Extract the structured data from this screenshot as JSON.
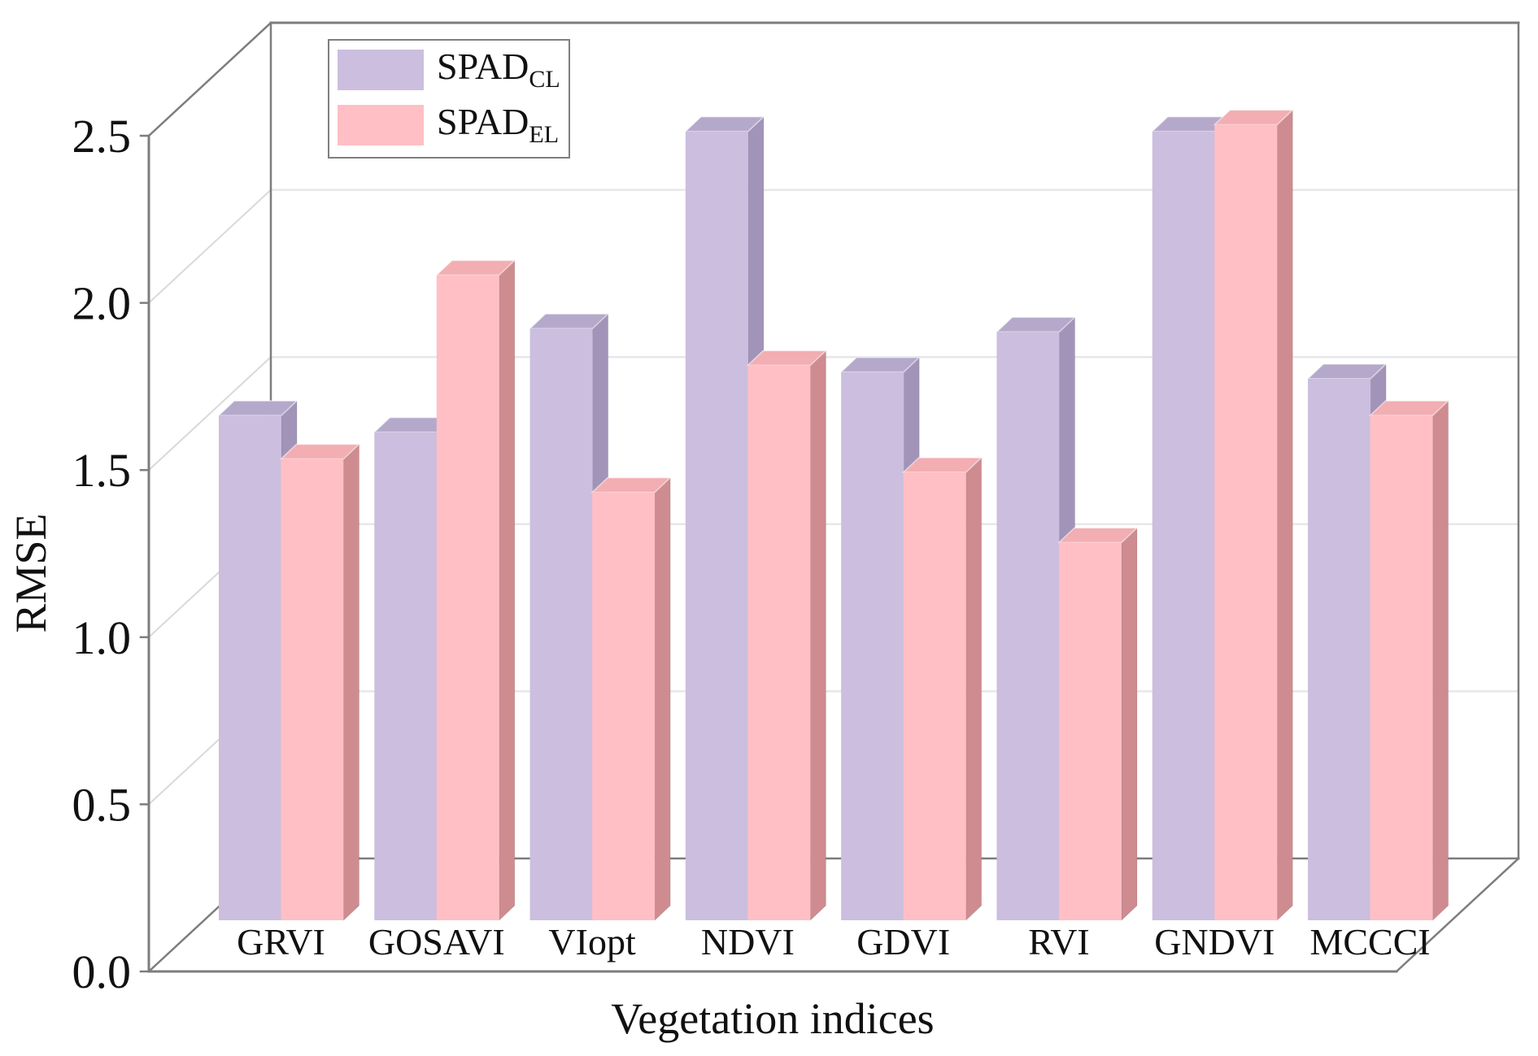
{
  "chart_data": {
    "type": "bar",
    "projection": "3d",
    "xlabel": "Vegetation indices",
    "ylabel": "RMSE",
    "categories": [
      "GRVI",
      "GOSAVI",
      "VIopt",
      "NDVI",
      "GDVI",
      "RVI",
      "GNDVI",
      "MCCCI"
    ],
    "series": [
      {
        "name": "SPAD_CL",
        "label_base": "SPAD",
        "label_sub": "CL",
        "front_color": "#cbbede",
        "top_color": "#b5a9cb",
        "side_color": "#a294b9",
        "values": [
          1.51,
          1.46,
          1.77,
          2.36,
          1.64,
          1.76,
          2.36,
          1.62
        ]
      },
      {
        "name": "SPAD_EL",
        "label_base": "SPAD",
        "label_sub": "EL",
        "front_color": "#ffbfc5",
        "top_color": "#f2aeb2",
        "side_color": "#ce8c90",
        "values": [
          1.38,
          1.93,
          1.28,
          1.66,
          1.34,
          1.13,
          2.38,
          1.51
        ]
      }
    ],
    "ylim": [
      0.0,
      2.5
    ],
    "yticks": [
      "0.0",
      "0.5",
      "1.0",
      "1.5",
      "2.0",
      "2.5"
    ],
    "grid": true,
    "legend_position": "top-left"
  },
  "colors": {
    "frame": "#7d7d7d",
    "grid_back_wall": "#e7e7ea",
    "grid_left_wall": "#d9d9dc",
    "text": "#111111",
    "background": "#ffffff"
  }
}
